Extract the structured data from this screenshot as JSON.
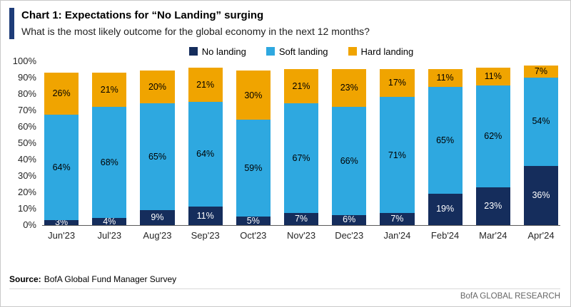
{
  "header": {
    "title": "Chart 1: Expectations for “No Landing” surging",
    "subtitle": "What is the most likely outcome for the global economy in the next 12 months?"
  },
  "footer": {
    "source_label": "Source:",
    "source_text": "BofA Global Fund Manager Survey",
    "brand": "BofA GLOBAL RESEARCH"
  },
  "colors": {
    "accent_bar": "#1e3c78",
    "no_landing": "#152d5c",
    "soft_landing": "#2ea8e0",
    "hard_landing": "#f0a400"
  },
  "chart_data": {
    "type": "bar",
    "stacked": true,
    "title": "Chart 1: Expectations for “No Landing” surging",
    "xlabel": "",
    "ylabel": "",
    "ylim": [
      0,
      100
    ],
    "grid": false,
    "legend_position": "top",
    "value_suffix": "%",
    "y_ticks": [
      "0%",
      "10%",
      "20%",
      "30%",
      "40%",
      "50%",
      "60%",
      "70%",
      "80%",
      "90%",
      "100%"
    ],
    "categories": [
      "Jun'23",
      "Jul'23",
      "Aug'23",
      "Sep'23",
      "Oct'23",
      "Nov'23",
      "Dec'23",
      "Jan'24",
      "Feb'24",
      "Mar'24",
      "Apr'24"
    ],
    "series": [
      {
        "name": "No landing",
        "color": "#152d5c",
        "label_color": "#ffffff",
        "values": [
          3,
          4,
          9,
          11,
          5,
          7,
          6,
          7,
          19,
          23,
          36
        ]
      },
      {
        "name": "Soft landing",
        "color": "#2ea8e0",
        "label_color": "#000000",
        "values": [
          64,
          68,
          65,
          64,
          59,
          67,
          66,
          71,
          65,
          62,
          54
        ]
      },
      {
        "name": "Hard landing",
        "color": "#f0a400",
        "label_color": "#000000",
        "values": [
          26,
          21,
          20,
          21,
          30,
          21,
          23,
          17,
          11,
          11,
          7
        ]
      }
    ]
  }
}
